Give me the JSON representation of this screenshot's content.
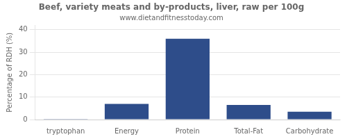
{
  "chart_data": {
    "type": "bar",
    "title": "Beef, variety meats and by-products, liver, raw per 100g",
    "subtitle": "www.dietandfitnesstoday.com",
    "categories": [
      "tryptophan",
      "Energy",
      "Protein",
      "Total-Fat",
      "Carbohydrate"
    ],
    "values": [
      0.2,
      7.0,
      36.0,
      6.5,
      3.5
    ],
    "color": "#2e4d8a",
    "ylabel": "Percentage of RDH (%)",
    "ylim": [
      0,
      42
    ],
    "yticks": [
      0,
      10,
      20,
      30,
      40
    ],
    "grid": true
  }
}
